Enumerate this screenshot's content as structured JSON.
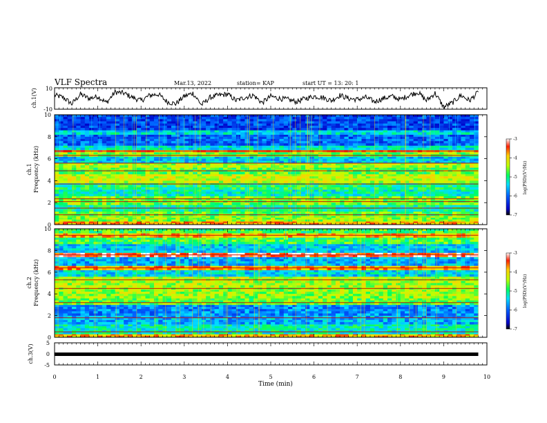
{
  "header": {
    "title": "VLF Spectra",
    "date": "Mar.13, 2022",
    "station": "station= KAP",
    "start_time": "start  UT  =   13: 20: 1"
  },
  "chart_data": [
    {
      "type": "line",
      "panel": "ch1-waveform",
      "ylabel": "ch.1(V)",
      "ylim": [
        -10,
        10
      ],
      "yticks": [
        "10",
        "-10"
      ],
      "xlim": [
        0,
        10
      ],
      "series": [
        {
          "color": "#000000",
          "x": [
            0,
            0.2,
            0.4,
            0.6,
            0.8,
            1.0,
            1.2,
            1.4,
            1.6,
            1.8,
            2.0,
            2.2,
            2.4,
            2.6,
            2.8,
            3.0,
            3.2,
            3.4,
            3.6,
            3.8,
            4.0,
            4.2,
            4.4,
            4.6,
            4.8,
            5.0,
            5.2,
            5.4,
            5.6,
            5.8,
            6.0,
            6.2,
            6.4,
            6.6,
            6.8,
            7.0,
            7.2,
            7.4,
            7.6,
            7.8,
            8.0,
            8.2,
            8.4,
            8.6,
            8.8,
            9.0,
            9.2,
            9.4,
            9.6,
            9.8
          ],
          "values": [
            3,
            1,
            -5,
            4,
            0,
            2,
            -4,
            6,
            5,
            1,
            -2,
            3,
            4,
            -3,
            -5,
            2,
            5,
            -6,
            1,
            3,
            4,
            -2,
            1,
            3,
            -4,
            2,
            0,
            -1,
            -3,
            0,
            2,
            1,
            -2,
            3,
            0,
            -1,
            1,
            -3,
            0,
            2,
            -1,
            3,
            6,
            -2,
            5,
            -8,
            -4,
            3,
            -2,
            6
          ]
        }
      ]
    },
    {
      "type": "heatmap",
      "panel": "ch1-spectrogram",
      "ylabel": "ch.1\nFrequency (kHz)",
      "yticks": [
        "0",
        "2",
        "4",
        "6",
        "8",
        "10"
      ],
      "ylim": [
        0,
        10
      ],
      "xlim": [
        0,
        10
      ],
      "colorbar": {
        "label": "log(PSD)(V²/Hz)",
        "ticks": [
          "-3",
          "-4",
          "-5",
          "-6",
          "-7"
        ],
        "range": [
          -7,
          -3
        ]
      },
      "bands": [
        {
          "f0": 0.0,
          "f1": 0.3,
          "level": -3.8
        },
        {
          "f0": 0.3,
          "f1": 0.8,
          "level": -4.5
        },
        {
          "f0": 0.8,
          "f1": 1.2,
          "level": -4.7
        },
        {
          "f0": 1.2,
          "f1": 1.8,
          "level": -5.1
        },
        {
          "f0": 1.8,
          "f1": 2.6,
          "level": -4.6
        },
        {
          "f0": 2.6,
          "f1": 3.2,
          "level": -5.2
        },
        {
          "f0": 3.2,
          "f1": 3.8,
          "level": -5.0
        },
        {
          "f0": 3.8,
          "f1": 4.6,
          "level": -4.3
        },
        {
          "f0": 4.6,
          "f1": 5.2,
          "level": -4.7
        },
        {
          "f0": 5.2,
          "f1": 5.6,
          "level": -4.4
        },
        {
          "f0": 5.6,
          "f1": 6.2,
          "level": -5.5
        },
        {
          "f0": 6.2,
          "f1": 6.6,
          "level": -4.6
        },
        {
          "f0": 6.6,
          "f1": 6.8,
          "level": -3.7
        },
        {
          "f0": 6.8,
          "f1": 7.2,
          "level": -5.3
        },
        {
          "f0": 7.2,
          "f1": 8.2,
          "level": -6.0
        },
        {
          "f0": 8.2,
          "f1": 8.6,
          "level": -5.4
        },
        {
          "f0": 8.6,
          "f1": 10.0,
          "level": -6.2
        }
      ],
      "lines_khz": [
        0.9,
        1.5,
        2.1,
        2.35,
        3.7,
        4.9,
        5.6,
        6.3,
        6.7
      ]
    },
    {
      "type": "heatmap",
      "panel": "ch2-spectrogram",
      "ylabel": "ch.2\nFrequency (kHz)",
      "yticks": [
        "0",
        "2",
        "4",
        "6",
        "8",
        "10"
      ],
      "ylim": [
        0,
        10
      ],
      "xlim": [
        0,
        10
      ],
      "colorbar": {
        "label": "log(PSD)(V²/Hz)",
        "ticks": [
          "-3",
          "-4",
          "-5",
          "-6",
          "-7"
        ],
        "range": [
          -7,
          -3
        ]
      },
      "bands": [
        {
          "f0": 0.0,
          "f1": 0.3,
          "level": -3.9
        },
        {
          "f0": 0.3,
          "f1": 1.2,
          "level": -5.2
        },
        {
          "f0": 1.2,
          "f1": 2.0,
          "level": -5.6
        },
        {
          "f0": 2.0,
          "f1": 3.0,
          "level": -5.8
        },
        {
          "f0": 3.0,
          "f1": 3.6,
          "level": -4.7
        },
        {
          "f0": 3.6,
          "f1": 4.6,
          "level": -4.5
        },
        {
          "f0": 4.6,
          "f1": 5.6,
          "level": -4.4
        },
        {
          "f0": 5.6,
          "f1": 6.2,
          "level": -5.4
        },
        {
          "f0": 6.2,
          "f1": 6.6,
          "level": -3.8
        },
        {
          "f0": 6.6,
          "f1": 7.4,
          "level": -5.6
        },
        {
          "f0": 7.4,
          "f1": 7.8,
          "level": -3.3
        },
        {
          "f0": 7.8,
          "f1": 8.6,
          "level": -5.5
        },
        {
          "f0": 8.6,
          "f1": 9.2,
          "level": -4.8
        },
        {
          "f0": 9.2,
          "f1": 9.6,
          "level": -3.9
        },
        {
          "f0": 9.6,
          "f1": 10.0,
          "level": -4.8
        }
      ],
      "lines_khz": [
        0.5,
        1.8,
        3.2,
        4.5,
        5.3,
        6.4,
        7.6,
        9.4
      ]
    },
    {
      "type": "line",
      "panel": "ch3-waveform",
      "ylabel": "ch.3(V)",
      "ylim": [
        -5,
        5
      ],
      "yticks": [
        "5",
        "0",
        "-5"
      ],
      "xlim": [
        0,
        10
      ],
      "xlabel": "Time  (min)",
      "xticks": [
        "0",
        "1",
        "2",
        "3",
        "4",
        "5",
        "6",
        "7",
        "8",
        "9",
        "10"
      ],
      "series": [
        {
          "color": "#000000",
          "x": [
            0,
            9.8
          ],
          "values": [
            0,
            0
          ]
        }
      ]
    }
  ],
  "colors": {
    "axis": "#000000",
    "background": "#ffffff"
  }
}
